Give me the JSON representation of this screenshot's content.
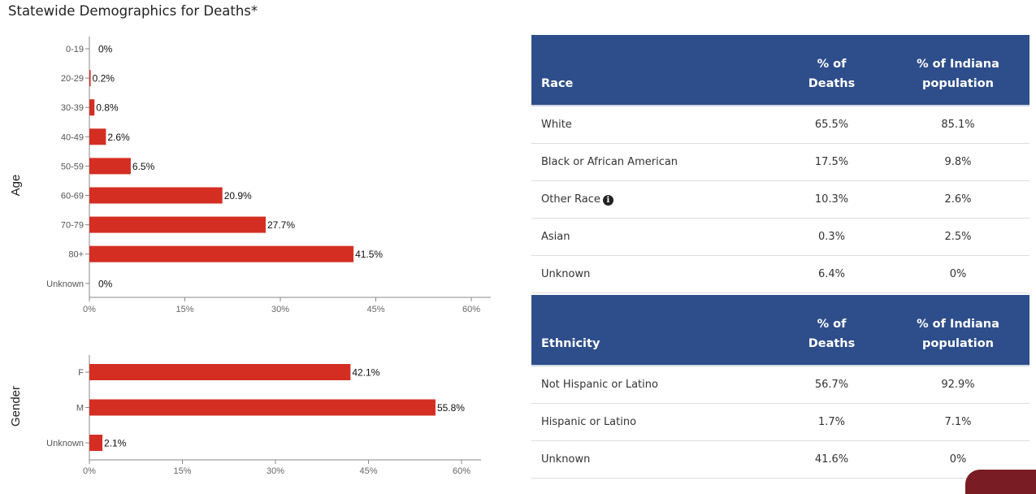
{
  "title": "Statewide Demographics for Deaths*",
  "chart_data": [
    {
      "type": "bar",
      "orientation": "horizontal",
      "ylabel": "Age",
      "categories": [
        "0-19",
        "20-29",
        "30-39",
        "40-49",
        "50-59",
        "60-69",
        "70-79",
        "80+",
        "Unknown"
      ],
      "values": [
        0,
        0.2,
        0.8,
        2.6,
        6.5,
        20.9,
        27.7,
        41.5,
        0
      ],
      "value_labels": [
        "0%",
        "0.2%",
        "0.8%",
        "2.6%",
        "6.5%",
        "20.9%",
        "27.7%",
        "41.5%",
        "0%"
      ],
      "xlim": [
        0,
        60
      ],
      "xticks": [
        "0%",
        "15%",
        "30%",
        "45%",
        "60%"
      ],
      "color": "#d42e23"
    },
    {
      "type": "bar",
      "orientation": "horizontal",
      "ylabel": "Gender",
      "categories": [
        "F",
        "M",
        "Unknown"
      ],
      "values": [
        42.1,
        55.8,
        2.1
      ],
      "value_labels": [
        "42.1%",
        "55.8%",
        "2.1%"
      ],
      "xlim": [
        0,
        60
      ],
      "xticks": [
        "0%",
        "15%",
        "30%",
        "45%",
        "60%"
      ],
      "color": "#d42e23"
    },
    {
      "type": "table",
      "columns": [
        "Race",
        "% of Deaths",
        "% of Indiana population"
      ],
      "header_lines": [
        [
          "Race"
        ],
        [
          "% of",
          "Deaths"
        ],
        [
          "% of Indiana",
          "population"
        ]
      ],
      "rows": [
        {
          "label": "White",
          "deaths": "65.5%",
          "population": "85.1%"
        },
        {
          "label": "Black or African American",
          "deaths": "17.5%",
          "population": "9.8%"
        },
        {
          "label": "Other Race",
          "deaths": "10.3%",
          "population": "2.6%",
          "info_icon": "info-circle-icon"
        },
        {
          "label": "Asian",
          "deaths": "0.3%",
          "population": "2.5%"
        },
        {
          "label": "Unknown",
          "deaths": "6.4%",
          "population": "0%"
        }
      ]
    },
    {
      "type": "table",
      "columns": [
        "Ethnicity",
        "% of Deaths",
        "% of Indiana population"
      ],
      "header_lines": [
        [
          "Ethnicity"
        ],
        [
          "% of",
          "Deaths"
        ],
        [
          "% of Indiana",
          "population"
        ]
      ],
      "rows": [
        {
          "label": "Not Hispanic or Latino",
          "deaths": "56.7%",
          "population": "92.9%"
        },
        {
          "label": "Hispanic or Latino",
          "deaths": "1.7%",
          "population": "7.1%"
        },
        {
          "label": "Unknown",
          "deaths": "41.6%",
          "population": "0%"
        }
      ]
    }
  ],
  "colors": {
    "bar": "#d42e23",
    "table_header": "#2e4e8b",
    "axis": "#888888"
  }
}
